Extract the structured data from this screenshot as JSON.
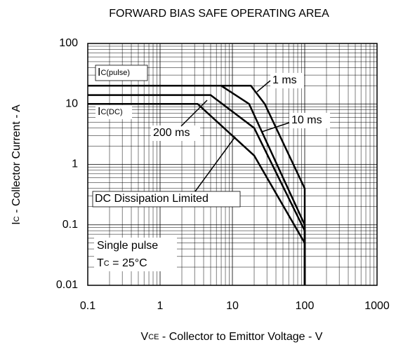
{
  "chart_data": {
    "type": "line",
    "title": "FORWARD BIAS SAFE OPERATING AREA",
    "x_label": {
      "main": "V",
      "sub": "CE",
      "rest": " - Collector to Emittor Voltage - V"
    },
    "y_label": {
      "main": "I",
      "sub": "C",
      "rest": " - Collector Current - A"
    },
    "xscale": "log",
    "yscale": "log",
    "grid": true,
    "minor_grid": true,
    "color": "#000000",
    "xlim": [
      0.1,
      1000
    ],
    "xticks": [
      0.1,
      1,
      10,
      100,
      1000
    ],
    "ylim": [
      0.01,
      100
    ],
    "yticks": [
      0.01,
      0.1,
      1,
      10,
      100
    ],
    "series": [
      {
        "name": "1 ms",
        "color": "#000000",
        "x": [
          0.1,
          18,
          28,
          100,
          100
        ],
        "values": [
          20,
          20,
          10,
          0.4,
          0.01
        ]
      },
      {
        "name": "10 ms",
        "color": "#000000",
        "x": [
          0.1,
          7,
          17,
          100,
          100
        ],
        "values": [
          20,
          20,
          10,
          0.1,
          0.01
        ]
      },
      {
        "name": "200 ms",
        "color": "#000000",
        "x": [
          0.1,
          5,
          20,
          100,
          100
        ],
        "values": [
          14,
          14,
          4,
          0.08,
          0.01
        ]
      },
      {
        "name": "DC Dissipation Limited",
        "color": "#000000",
        "x": [
          0.1,
          3.3,
          20,
          100,
          100
        ],
        "values": [
          10,
          10,
          1.4,
          0.05,
          0.01
        ]
      }
    ],
    "annotations": {
      "ic_pulse": {
        "main": "I",
        "sub": "C(pulse)"
      },
      "ic_dc": {
        "main": "I",
        "sub": "C(DC)"
      },
      "single_pulse": "Single pulse",
      "tc": {
        "main": "T",
        "sub": "C",
        "rest": " = 25°C"
      }
    }
  }
}
